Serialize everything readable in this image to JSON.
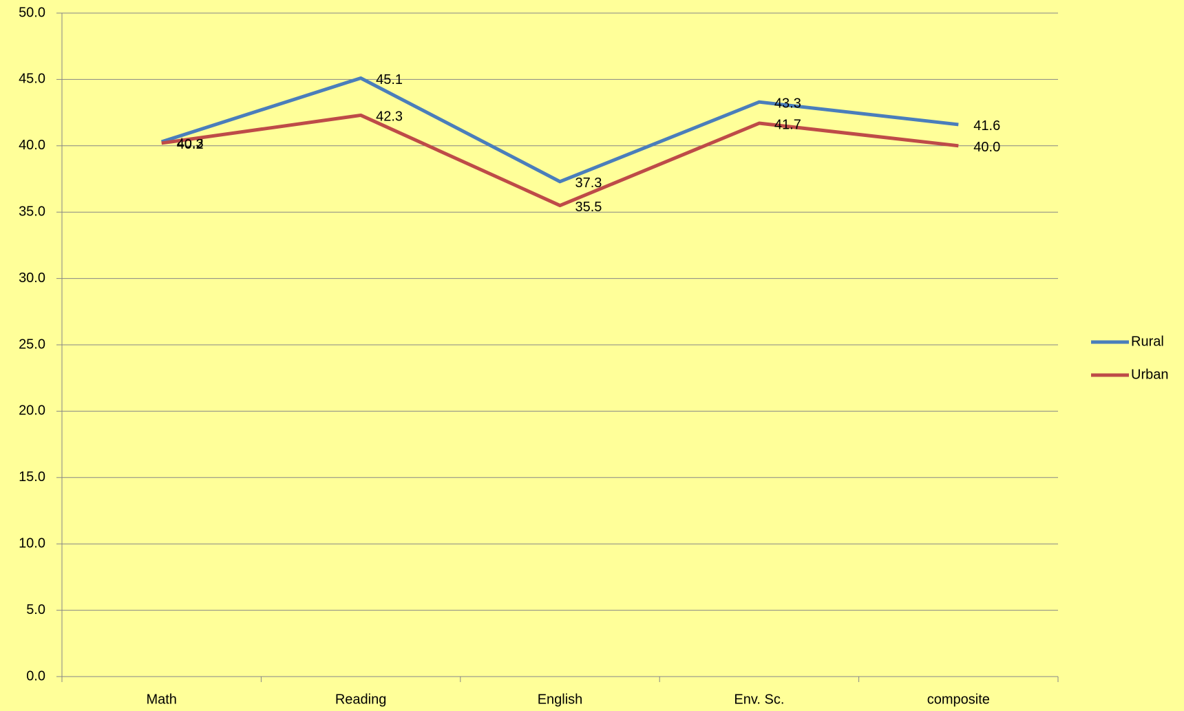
{
  "chart_data": {
    "type": "line",
    "categories": [
      "Math",
      "Reading",
      "English",
      "Env. Sc.",
      "composite"
    ],
    "series": [
      {
        "name": "Rural",
        "color": "#4a7ebb",
        "values": [
          40.3,
          45.1,
          37.3,
          43.3,
          41.6
        ],
        "value_labels": [
          "40.3",
          "45.1",
          "37.3",
          "43.3",
          "41.6"
        ]
      },
      {
        "name": "Urban",
        "color": "#be4b48",
        "values": [
          40.2,
          42.3,
          35.5,
          41.7,
          40.0
        ],
        "value_labels": [
          "40.2",
          "42.3",
          "35.5",
          "41.7",
          "40.0"
        ]
      }
    ],
    "ylim": [
      0,
      50
    ],
    "yticks": [
      {
        "value": 0,
        "label": "0.0"
      },
      {
        "value": 5,
        "label": "5.0"
      },
      {
        "value": 10,
        "label": "10.0"
      },
      {
        "value": 15,
        "label": "15.0"
      },
      {
        "value": 20,
        "label": "20.0"
      },
      {
        "value": 25,
        "label": "25.0"
      },
      {
        "value": 30,
        "label": "30.0"
      },
      {
        "value": 35,
        "label": "35.0"
      },
      {
        "value": 40,
        "label": "40.0"
      },
      {
        "value": 45,
        "label": "45.0"
      },
      {
        "value": 50,
        "label": "50.0"
      }
    ],
    "grid": true,
    "legend": "right"
  }
}
